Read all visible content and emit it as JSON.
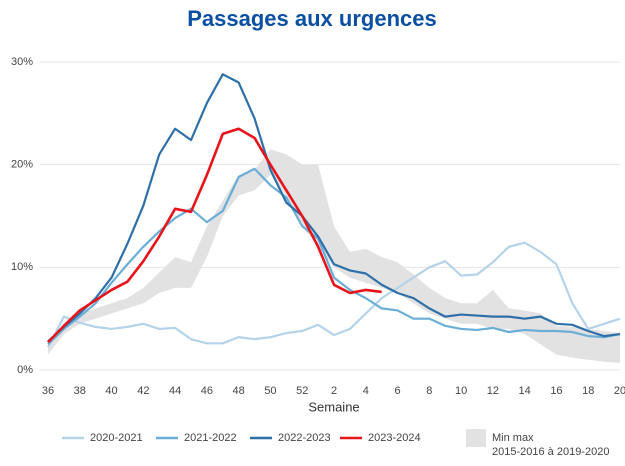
{
  "chart_data": {
    "type": "line",
    "title": "Passages aux urgences",
    "x_label": "Semaine",
    "categories": [
      "36",
      null,
      "38",
      null,
      "40",
      null,
      "42",
      null,
      "44",
      null,
      "46",
      null,
      "48",
      null,
      "50",
      null,
      "52",
      null,
      "2",
      null,
      "4",
      null,
      "6",
      null,
      "8",
      null,
      "10",
      null,
      "12",
      null,
      "14",
      null,
      "16",
      null,
      "18",
      null,
      "20"
    ],
    "ylim": [
      0,
      30
    ],
    "yticks": [
      {
        "value": 0,
        "label": "0%"
      },
      {
        "value": 10,
        "label": "10%"
      },
      {
        "value": 20,
        "label": "20%"
      },
      {
        "value": 30,
        "label": "30%"
      }
    ],
    "grid": true,
    "series": [
      {
        "name": "2020-2021",
        "color": "#b5d3e8",
        "values": [
          2.2,
          5.2,
          4.6,
          4.2,
          4.0,
          4.2,
          4.5,
          4.0,
          4.1,
          3.0,
          2.6,
          2.6,
          3.2,
          3.0,
          3.2,
          3.6,
          3.8,
          4.4,
          3.4,
          4.0,
          5.5,
          7.0,
          8.0,
          9.0,
          10.0,
          10.6,
          9.2,
          9.3,
          10.5,
          12.0,
          12.4,
          11.5,
          10.3,
          6.5,
          4.0,
          4.5,
          5.0
        ]
      },
      {
        "name": "2021-2022",
        "color": "#6aaed6",
        "values": [
          2.5,
          4.0,
          5.2,
          6.5,
          8.5,
          10.3,
          12.0,
          13.5,
          14.8,
          15.7,
          14.4,
          15.5,
          18.8,
          19.6,
          18.0,
          16.8,
          14.0,
          12.8,
          9.0,
          7.8,
          7.0,
          6.0,
          5.8,
          5.0,
          5.0,
          4.3,
          4.0,
          3.9,
          4.1,
          3.7,
          3.9,
          3.8,
          3.8,
          3.7,
          3.3,
          3.2,
          3.5
        ]
      },
      {
        "name": "2022-2023",
        "color": "#2f6fa8",
        "values": [
          2.8,
          4.2,
          5.5,
          7.0,
          9.0,
          12.3,
          16.0,
          21.0,
          23.5,
          22.4,
          26.0,
          28.8,
          28.0,
          24.5,
          19.5,
          16.3,
          15.0,
          13.0,
          10.3,
          9.7,
          9.4,
          8.3,
          7.5,
          7.0,
          6.0,
          5.2,
          5.4,
          5.3,
          5.2,
          5.2,
          5.0,
          5.2,
          4.5,
          4.4,
          3.8,
          3.3,
          3.5
        ]
      },
      {
        "name": "2023-2024",
        "color": "#e8141b",
        "values": [
          2.7,
          4.3,
          5.8,
          6.8,
          7.8,
          8.6,
          10.6,
          13.0,
          15.7,
          15.4,
          19.0,
          23.0,
          23.5,
          22.6,
          20.0,
          17.5,
          15.0,
          12.0,
          8.3,
          7.5,
          7.8,
          7.6,
          null,
          null,
          null,
          null,
          null,
          null,
          null,
          null,
          null,
          null,
          null,
          null,
          null,
          null,
          null
        ]
      }
    ],
    "band": {
      "name": "Min max",
      "subname": "2015-2016 à 2019-2020",
      "color": "#e2e2e2",
      "min": [
        1.5,
        3.5,
        4.5,
        5.0,
        5.5,
        6.0,
        6.5,
        7.5,
        8.0,
        8.0,
        11.0,
        15.0,
        17.0,
        17.5,
        19.0,
        17.0,
        14.0,
        12.0,
        10.0,
        9.0,
        8.5,
        8.0,
        7.5,
        6.5,
        5.5,
        5.0,
        4.5,
        4.5,
        4.0,
        4.0,
        3.5,
        2.5,
        1.5,
        1.2,
        1.0,
        0.8,
        0.7
      ],
      "max": [
        2.5,
        4.5,
        5.5,
        6.0,
        6.5,
        7.0,
        8.0,
        9.5,
        11.0,
        10.5,
        14.0,
        16.5,
        19.0,
        19.5,
        21.5,
        21.0,
        20.0,
        20.0,
        14.0,
        11.5,
        11.8,
        11.0,
        10.5,
        9.3,
        8.0,
        7.0,
        6.5,
        6.5,
        7.8,
        6.0,
        5.8,
        5.5,
        4.3,
        4.2,
        4.0,
        3.8,
        3.6
      ]
    }
  }
}
